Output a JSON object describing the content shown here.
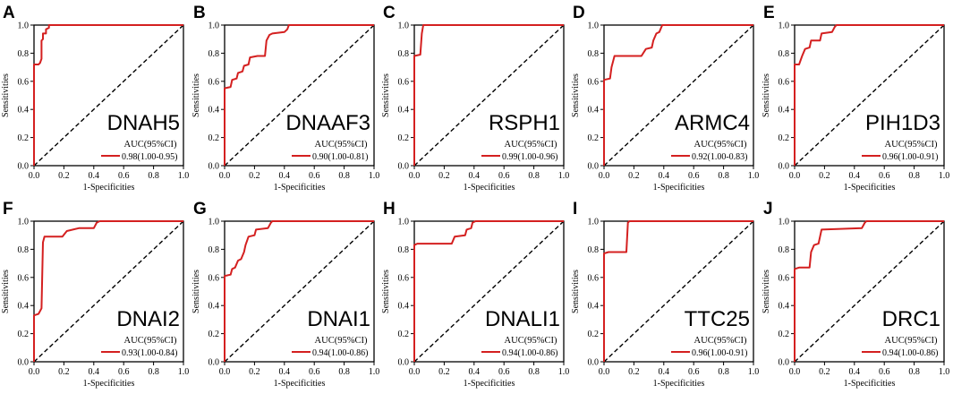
{
  "colors": {
    "roc": "#d42020",
    "diagonal": "#000000",
    "axis": "#000000"
  },
  "chart_data": [
    {
      "panel": "A",
      "type": "line",
      "gene": "DNAH5",
      "xlabel": "1-Specificities",
      "ylabel": "Sensitivities",
      "xlim": [
        0,
        1
      ],
      "ylim": [
        0,
        1
      ],
      "xticks": [
        "0.0",
        "0.2",
        "0.4",
        "0.6",
        "0.8",
        "1.0"
      ],
      "yticks": [
        "0.0",
        "0.2",
        "0.4",
        "0.6",
        "0.8",
        "1.0"
      ],
      "legend_title": "AUC(95%CI)",
      "legend_label": "0.98(1.00-0.95)",
      "roc": [
        [
          0,
          0
        ],
        [
          0,
          0.72
        ],
        [
          0.03,
          0.72
        ],
        [
          0.04,
          0.73
        ],
        [
          0.05,
          0.76
        ],
        [
          0.05,
          0.89
        ],
        [
          0.06,
          0.9
        ],
        [
          0.06,
          0.94
        ],
        [
          0.08,
          0.94
        ],
        [
          0.08,
          0.97
        ],
        [
          0.1,
          0.98
        ],
        [
          0.1,
          1
        ],
        [
          1,
          1
        ]
      ]
    },
    {
      "panel": "B",
      "type": "line",
      "gene": "DNAAF3",
      "xlabel": "1-Specificities",
      "ylabel": "Sensitivities",
      "xlim": [
        0,
        1
      ],
      "ylim": [
        0,
        1
      ],
      "xticks": [
        "0.0",
        "0.2",
        "0.4",
        "0.6",
        "0.8",
        "1.0"
      ],
      "yticks": [
        "0.0",
        "0.2",
        "0.4",
        "0.6",
        "0.8",
        "1.0"
      ],
      "legend_title": "AUC(95%CI)",
      "legend_label": "0.90(1.00-0.81)",
      "roc": [
        [
          0,
          0
        ],
        [
          0,
          0.55
        ],
        [
          0.04,
          0.56
        ],
        [
          0.05,
          0.61
        ],
        [
          0.08,
          0.62
        ],
        [
          0.09,
          0.66
        ],
        [
          0.12,
          0.67
        ],
        [
          0.13,
          0.71
        ],
        [
          0.16,
          0.72
        ],
        [
          0.17,
          0.77
        ],
        [
          0.22,
          0.78
        ],
        [
          0.27,
          0.78
        ],
        [
          0.28,
          0.89
        ],
        [
          0.3,
          0.93
        ],
        [
          0.32,
          0.94
        ],
        [
          0.4,
          0.95
        ],
        [
          0.42,
          0.97
        ],
        [
          0.43,
          1
        ],
        [
          1,
          1
        ]
      ]
    },
    {
      "panel": "C",
      "type": "line",
      "gene": "RSPH1",
      "xlabel": "1-Specificities",
      "ylabel": "Sensitivities",
      "xlim": [
        0,
        1
      ],
      "ylim": [
        0,
        1
      ],
      "xticks": [
        "0.0",
        "0.2",
        "0.4",
        "0.6",
        "0.8",
        "1.0"
      ],
      "yticks": [
        "0.0",
        "0.2",
        "0.4",
        "0.6",
        "0.8",
        "1.0"
      ],
      "legend_title": "AUC(95%CI)",
      "legend_label": "0.99(1.00-0.96)",
      "roc": [
        [
          0,
          0
        ],
        [
          0,
          0.78
        ],
        [
          0.04,
          0.79
        ],
        [
          0.05,
          0.94
        ],
        [
          0.06,
          1
        ],
        [
          1,
          1
        ]
      ]
    },
    {
      "panel": "D",
      "type": "line",
      "gene": "ARMC4",
      "xlabel": "1-Specificities",
      "ylabel": "Sensitivities",
      "xlim": [
        0,
        1
      ],
      "ylim": [
        0,
        1
      ],
      "xticks": [
        "0.0",
        "0.2",
        "0.4",
        "0.6",
        "0.8",
        "1.0"
      ],
      "yticks": [
        "0.0",
        "0.2",
        "0.4",
        "0.6",
        "0.8",
        "1.0"
      ],
      "legend_title": "AUC(95%CI)",
      "legend_label": "0.92(1.00-0.83)",
      "roc": [
        [
          0,
          0
        ],
        [
          0,
          0.61
        ],
        [
          0.04,
          0.62
        ],
        [
          0.05,
          0.7
        ],
        [
          0.07,
          0.78
        ],
        [
          0.25,
          0.78
        ],
        [
          0.28,
          0.83
        ],
        [
          0.32,
          0.84
        ],
        [
          0.33,
          0.89
        ],
        [
          0.35,
          0.94
        ],
        [
          0.37,
          0.95
        ],
        [
          0.39,
          1
        ],
        [
          1,
          1
        ]
      ]
    },
    {
      "panel": "E",
      "type": "line",
      "gene": "PIH1D3",
      "xlabel": "1-Specificities",
      "ylabel": "Sensitivities",
      "xlim": [
        0,
        1
      ],
      "ylim": [
        0,
        1
      ],
      "xticks": [
        "0.0",
        "0.2",
        "0.4",
        "0.6",
        "0.8",
        "1.0"
      ],
      "yticks": [
        "0.0",
        "0.2",
        "0.4",
        "0.6",
        "0.8",
        "1.0"
      ],
      "legend_title": "AUC(95%CI)",
      "legend_label": "0.96(1.00-0.91)",
      "roc": [
        [
          0,
          0
        ],
        [
          0,
          0.72
        ],
        [
          0.03,
          0.72
        ],
        [
          0.05,
          0.78
        ],
        [
          0.07,
          0.83
        ],
        [
          0.1,
          0.84
        ],
        [
          0.11,
          0.89
        ],
        [
          0.17,
          0.89
        ],
        [
          0.18,
          0.94
        ],
        [
          0.25,
          0.95
        ],
        [
          0.27,
          0.99
        ],
        [
          0.28,
          1
        ],
        [
          1,
          1
        ]
      ]
    },
    {
      "panel": "F",
      "type": "line",
      "gene": "DNAI2",
      "xlabel": "1-Specificities",
      "ylabel": "Sensitivities",
      "xlim": [
        0,
        1
      ],
      "ylim": [
        0,
        1
      ],
      "xticks": [
        "0.0",
        "0.2",
        "0.4",
        "0.6",
        "0.8",
        "1.0"
      ],
      "yticks": [
        "0.0",
        "0.2",
        "0.4",
        "0.6",
        "0.8",
        "1.0"
      ],
      "legend_title": "AUC(95%CI)",
      "legend_label": "0.93(1.00-0.84)",
      "roc": [
        [
          0,
          0
        ],
        [
          0,
          0.33
        ],
        [
          0.03,
          0.34
        ],
        [
          0.05,
          0.38
        ],
        [
          0.06,
          0.85
        ],
        [
          0.07,
          0.89
        ],
        [
          0.19,
          0.89
        ],
        [
          0.22,
          0.93
        ],
        [
          0.3,
          0.95
        ],
        [
          0.4,
          0.95
        ],
        [
          0.42,
          0.99
        ],
        [
          0.44,
          1
        ],
        [
          1,
          1
        ]
      ]
    },
    {
      "panel": "G",
      "type": "line",
      "gene": "DNAI1",
      "xlabel": "1-Specificities",
      "ylabel": "Sensitivities",
      "xlim": [
        0,
        1
      ],
      "ylim": [
        0,
        1
      ],
      "xticks": [
        "0.0",
        "0.2",
        "0.4",
        "0.6",
        "0.8",
        "1.0"
      ],
      "yticks": [
        "0.0",
        "0.2",
        "0.4",
        "0.6",
        "0.8",
        "1.0"
      ],
      "legend_title": "AUC(95%CI)",
      "legend_label": "0.94(1.00-0.86)",
      "roc": [
        [
          0,
          0
        ],
        [
          0,
          0.61
        ],
        [
          0.04,
          0.62
        ],
        [
          0.05,
          0.66
        ],
        [
          0.07,
          0.67
        ],
        [
          0.09,
          0.72
        ],
        [
          0.11,
          0.73
        ],
        [
          0.13,
          0.78
        ],
        [
          0.14,
          0.83
        ],
        [
          0.16,
          0.89
        ],
        [
          0.2,
          0.9
        ],
        [
          0.21,
          0.94
        ],
        [
          0.29,
          0.95
        ],
        [
          0.31,
          0.99
        ],
        [
          0.32,
          1
        ],
        [
          1,
          1
        ]
      ]
    },
    {
      "panel": "H",
      "type": "line",
      "gene": "DNALI1",
      "xlabel": "1-Specificities",
      "ylabel": "Sensitivities",
      "xlim": [
        0,
        1
      ],
      "ylim": [
        0,
        1
      ],
      "xticks": [
        "0.0",
        "0.2",
        "0.4",
        "0.6",
        "0.8",
        "1.0"
      ],
      "yticks": [
        "0.0",
        "0.2",
        "0.4",
        "0.6",
        "0.8",
        "1.0"
      ],
      "legend_title": "AUC(95%CI)",
      "legend_label": "0.94(1.00-0.86)",
      "roc": [
        [
          0,
          0
        ],
        [
          0,
          0.83
        ],
        [
          0.02,
          0.84
        ],
        [
          0.25,
          0.84
        ],
        [
          0.27,
          0.89
        ],
        [
          0.34,
          0.9
        ],
        [
          0.35,
          0.94
        ],
        [
          0.38,
          0.95
        ],
        [
          0.39,
          0.99
        ],
        [
          0.41,
          1
        ],
        [
          1,
          1
        ]
      ]
    },
    {
      "panel": "I",
      "type": "line",
      "gene": "TTC25",
      "xlabel": "1-Specificities",
      "ylabel": "Sensitivities",
      "xlim": [
        0,
        1
      ],
      "ylim": [
        0,
        1
      ],
      "xticks": [
        "0.0",
        "0.2",
        "0.4",
        "0.6",
        "0.8",
        "1.0"
      ],
      "yticks": [
        "0.0",
        "0.2",
        "0.4",
        "0.6",
        "0.8",
        "1.0"
      ],
      "legend_title": "AUC(95%CI)",
      "legend_label": "0.96(1.00-0.91)",
      "roc": [
        [
          0,
          0
        ],
        [
          0,
          0.77
        ],
        [
          0.03,
          0.78
        ],
        [
          0.15,
          0.78
        ],
        [
          0.16,
          0.99
        ],
        [
          0.17,
          1
        ],
        [
          1,
          1
        ]
      ]
    },
    {
      "panel": "J",
      "type": "line",
      "gene": "DRC1",
      "xlabel": "1-Specificities",
      "ylabel": "Sensitivities",
      "xlim": [
        0,
        1
      ],
      "ylim": [
        0,
        1
      ],
      "xticks": [
        "0.0",
        "0.2",
        "0.4",
        "0.6",
        "0.8",
        "1.0"
      ],
      "yticks": [
        "0.0",
        "0.2",
        "0.4",
        "0.6",
        "0.8",
        "1.0"
      ],
      "legend_title": "AUC(95%CI)",
      "legend_label": "0.94(1.00-0.86)",
      "roc": [
        [
          0,
          0
        ],
        [
          0,
          0.66
        ],
        [
          0.03,
          0.67
        ],
        [
          0.1,
          0.67
        ],
        [
          0.11,
          0.78
        ],
        [
          0.13,
          0.83
        ],
        [
          0.16,
          0.84
        ],
        [
          0.17,
          0.89
        ],
        [
          0.18,
          0.94
        ],
        [
          0.45,
          0.95
        ],
        [
          0.47,
          0.99
        ],
        [
          0.48,
          1
        ],
        [
          1,
          1
        ]
      ]
    }
  ]
}
